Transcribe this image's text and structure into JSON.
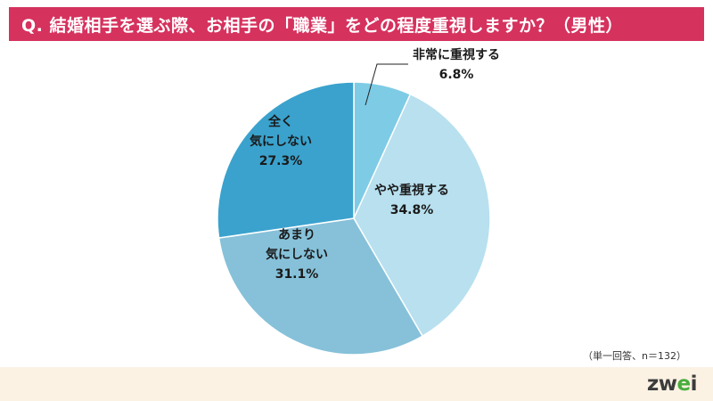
{
  "title": "Q. 結婚相手を選ぶ際、お相手の「職業」をどの程度重視しますか？（男性）",
  "note": "（単一回答、n＝132）",
  "logo": {
    "text": "zwei",
    "accent_color": "#49ad3c"
  },
  "colors": {
    "title_bg": "#d6325e",
    "footer_bg": "#fbf2e4"
  },
  "chart_data": {
    "type": "pie",
    "title": "Q. 結婚相手を選ぶ際、お相手の「職業」をどの程度重視しますか？（男性）",
    "start": "12 o'clock",
    "direction": "clockwise",
    "slices": [
      {
        "label": "非常に重視する",
        "value": 6.8,
        "value_label": "6.8%",
        "color": "#7ecbe6"
      },
      {
        "label": "やや重視する",
        "value": 34.8,
        "value_label": "34.8%",
        "color": "#b8e0ef"
      },
      {
        "label": "あまり気にしない",
        "value": 31.1,
        "value_label": "31.1%",
        "color": "#86c1d9"
      },
      {
        "label": "全く気にしない",
        "value": 27.3,
        "value_label": "27.3%",
        "color": "#3aa2cd"
      }
    ]
  }
}
